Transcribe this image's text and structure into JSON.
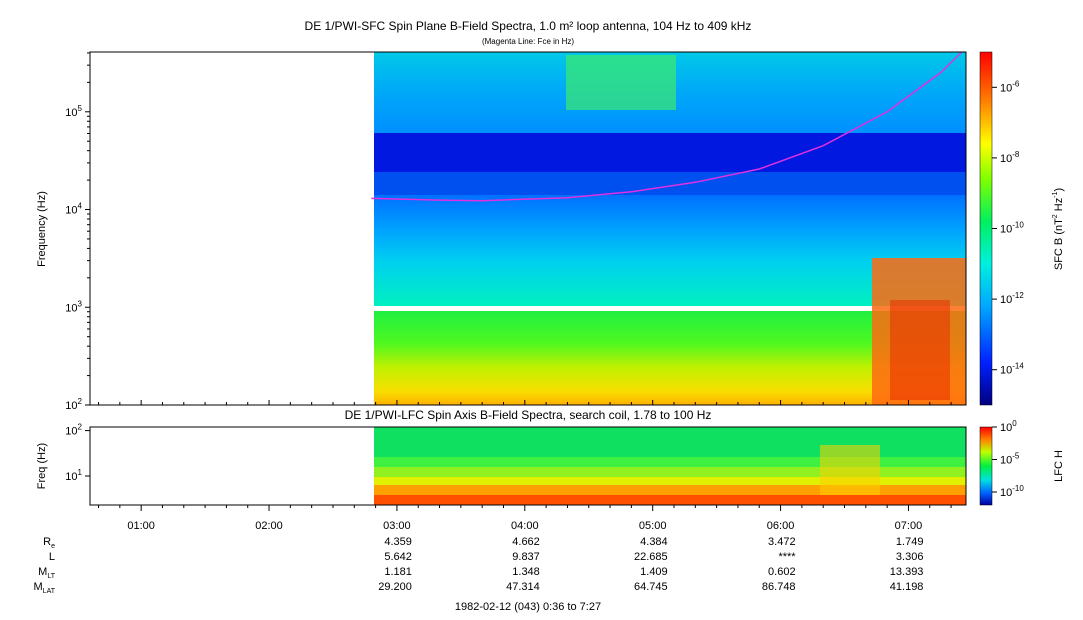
{
  "title_sfc": "DE 1/PWI-SFC  Spin Plane B-Field Spectra, 1.0 m² loop antenna, 104 Hz to 409 kHz",
  "subtitle_sfc": "(Magenta Line: Fce in Hz)",
  "title_lfc": "DE 1/PWI-LFC  Spin Axis B-Field Spectra, search coil, 1.78 to 100 Hz",
  "footer": "1982-02-12 (043) 0:36 to 7:27",
  "colors": {
    "fce_line": "#e030e0",
    "data_gap": "#ffffff"
  },
  "chart_data": [
    {
      "type": "heatmap",
      "name": "SFC spectrogram",
      "ylabel": "Frequency (Hz)",
      "yscale": "log",
      "ylim": [
        100,
        409000
      ],
      "yticks": [
        {
          "value": 100,
          "base": "10",
          "exp": "2"
        },
        {
          "value": 1000,
          "base": "10",
          "exp": "3"
        },
        {
          "value": 10000,
          "base": "10",
          "exp": "4"
        },
        {
          "value": 100000,
          "base": "10",
          "exp": "5"
        }
      ],
      "data_start_time": "02:48",
      "colorbar": {
        "label_prefix": "SFC B (nT",
        "label_sup1": "2",
        "label_mid": " Hz",
        "label_sup2": "-1",
        "label_suffix": ")",
        "scale": "log",
        "range_exp": [
          -15,
          -5
        ],
        "ticks": [
          {
            "exp": "-6",
            "label_base": "10"
          },
          {
            "exp": "-8",
            "label_base": "10"
          },
          {
            "exp": "-10",
            "label_base": "10"
          },
          {
            "exp": "-12",
            "label_base": "10"
          },
          {
            "exp": "-14",
            "label_base": "10"
          }
        ]
      },
      "fce_line_hz": [
        {
          "t": "02:48",
          "f": 13000
        },
        {
          "t": "03:20",
          "f": 12500
        },
        {
          "t": "03:40",
          "f": 12300
        },
        {
          "t": "04:20",
          "f": 13200
        },
        {
          "t": "04:50",
          "f": 15200
        },
        {
          "t": "05:20",
          "f": 19000
        },
        {
          "t": "05:50",
          "f": 26000
        },
        {
          "t": "06:20",
          "f": 45000
        },
        {
          "t": "06:50",
          "f": 100000
        },
        {
          "t": "07:15",
          "f": 250000
        },
        {
          "t": "07:25",
          "f": 409000
        }
      ]
    },
    {
      "type": "heatmap",
      "name": "LFC spectrogram",
      "ylabel": "Freq (Hz)",
      "yscale": "log",
      "ylim": [
        2.3,
        120
      ],
      "yticks": [
        {
          "value": 10,
          "base": "10",
          "exp": "1"
        },
        {
          "value": 100,
          "base": "10",
          "exp": "2"
        }
      ],
      "colorbar": {
        "label": "LFC H",
        "scale": "log",
        "range_exp": [
          -12,
          0
        ],
        "ticks": [
          {
            "exp": "0",
            "label_base": "10"
          },
          {
            "exp": "-5",
            "label_base": "10"
          },
          {
            "exp": "-10",
            "label_base": "10"
          }
        ]
      }
    }
  ],
  "x_axis": {
    "range": [
      "00:36",
      "07:27"
    ],
    "ticks": [
      "01:00",
      "02:00",
      "03:00",
      "04:00",
      "05:00",
      "06:00",
      "07:00"
    ]
  },
  "ephemeris": {
    "rows": [
      {
        "label": "R",
        "sub": "e",
        "values": [
          "4.359",
          "4.662",
          "4.384",
          "3.472",
          "1.749"
        ]
      },
      {
        "label": "L",
        "sub": "",
        "values": [
          "5.642",
          "9.837",
          "22.685",
          "****",
          "3.306"
        ]
      },
      {
        "label": "M",
        "sub": "LT",
        "values": [
          "1.181",
          "1.348",
          "1.409",
          "0.602",
          "13.393"
        ]
      },
      {
        "label": "M",
        "sub": "LAT",
        "values": [
          "29.200",
          "47.314",
          "64.745",
          "86.748",
          "41.198"
        ]
      }
    ],
    "value_times": [
      "03:00",
      "04:00",
      "05:00",
      "06:00",
      "07:00"
    ]
  }
}
